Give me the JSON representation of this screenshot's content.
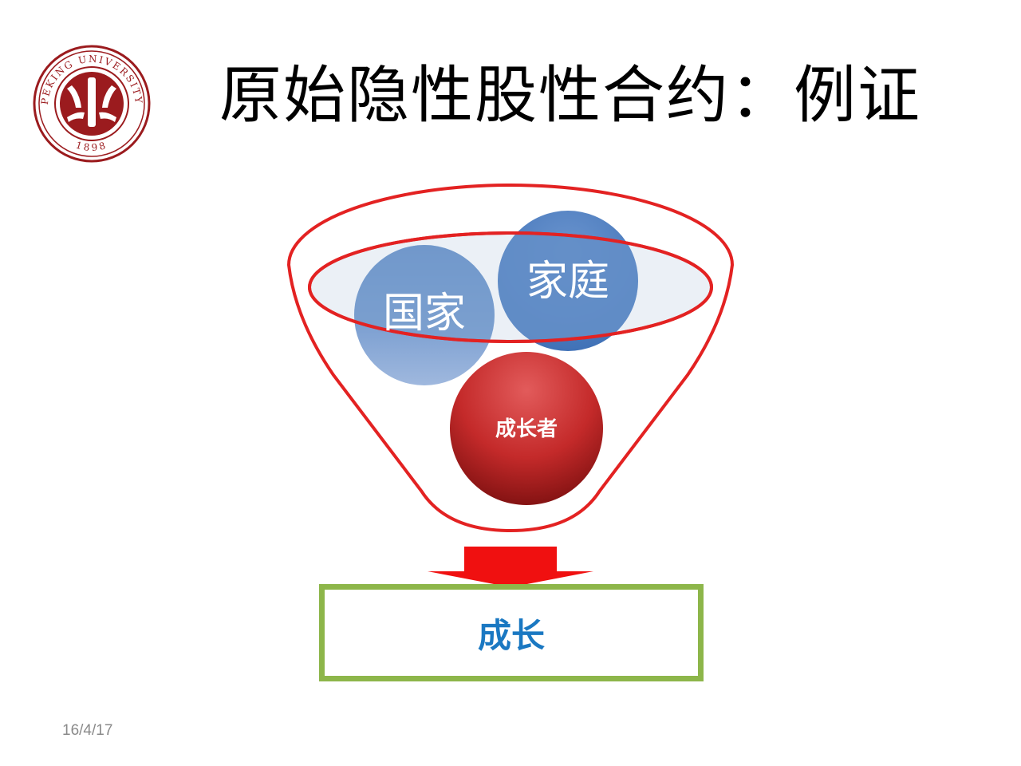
{
  "slide": {
    "title": "原始隐性股性合约：例证",
    "date": "16/4/17"
  },
  "logo": {
    "name": "peking-university-seal",
    "text_top": "PEKING UNIVERSITY",
    "year": "1898",
    "color": "#9b1b1e"
  },
  "diagram": {
    "circles": [
      {
        "label": "国家",
        "color": "#4e7fc0"
      },
      {
        "label": "家庭",
        "color": "#4e7fc0"
      },
      {
        "label": "成长者",
        "color": "#c42a2a"
      }
    ],
    "funnel_color": "#e32222",
    "arrow_color": "#f01010",
    "result": {
      "label": "成长",
      "border_color": "#8db64a",
      "text_color": "#1a78c2"
    }
  }
}
